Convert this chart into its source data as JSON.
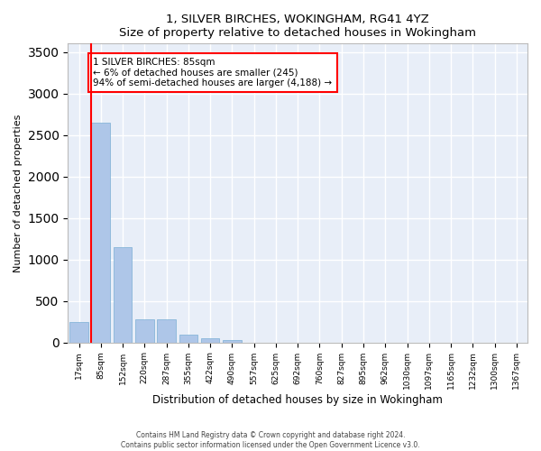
{
  "title": "1, SILVER BIRCHES, WOKINGHAM, RG41 4YZ",
  "subtitle": "Size of property relative to detached houses in Wokingham",
  "xlabel": "Distribution of detached houses by size in Wokingham",
  "ylabel": "Number of detached properties",
  "bar_color": "#aec6e8",
  "bar_edge_color": "#7aafd4",
  "categories": [
    "17sqm",
    "85sqm",
    "152sqm",
    "220sqm",
    "287sqm",
    "355sqm",
    "422sqm",
    "490sqm",
    "557sqm",
    "625sqm",
    "692sqm",
    "760sqm",
    "827sqm",
    "895sqm",
    "962sqm",
    "1030sqm",
    "1097sqm",
    "1165sqm",
    "1232sqm",
    "1300sqm",
    "1367sqm"
  ],
  "values": [
    250,
    2650,
    1150,
    280,
    280,
    90,
    55,
    30,
    0,
    0,
    0,
    0,
    0,
    0,
    0,
    0,
    0,
    0,
    0,
    0,
    0
  ],
  "red_line_index": 1,
  "annotation_line1": "1 SILVER BIRCHES: 85sqm",
  "annotation_line2": "← 6% of detached houses are smaller (245)",
  "annotation_line3": "94% of semi-detached houses are larger (4,188) →",
  "ylim": [
    0,
    3600
  ],
  "yticks": [
    0,
    500,
    1000,
    1500,
    2000,
    2500,
    3000,
    3500
  ],
  "background_color": "#e8eef8",
  "grid_color": "#ffffff",
  "footer1": "Contains HM Land Registry data © Crown copyright and database right 2024.",
  "footer2": "Contains public sector information licensed under the Open Government Licence v3.0."
}
